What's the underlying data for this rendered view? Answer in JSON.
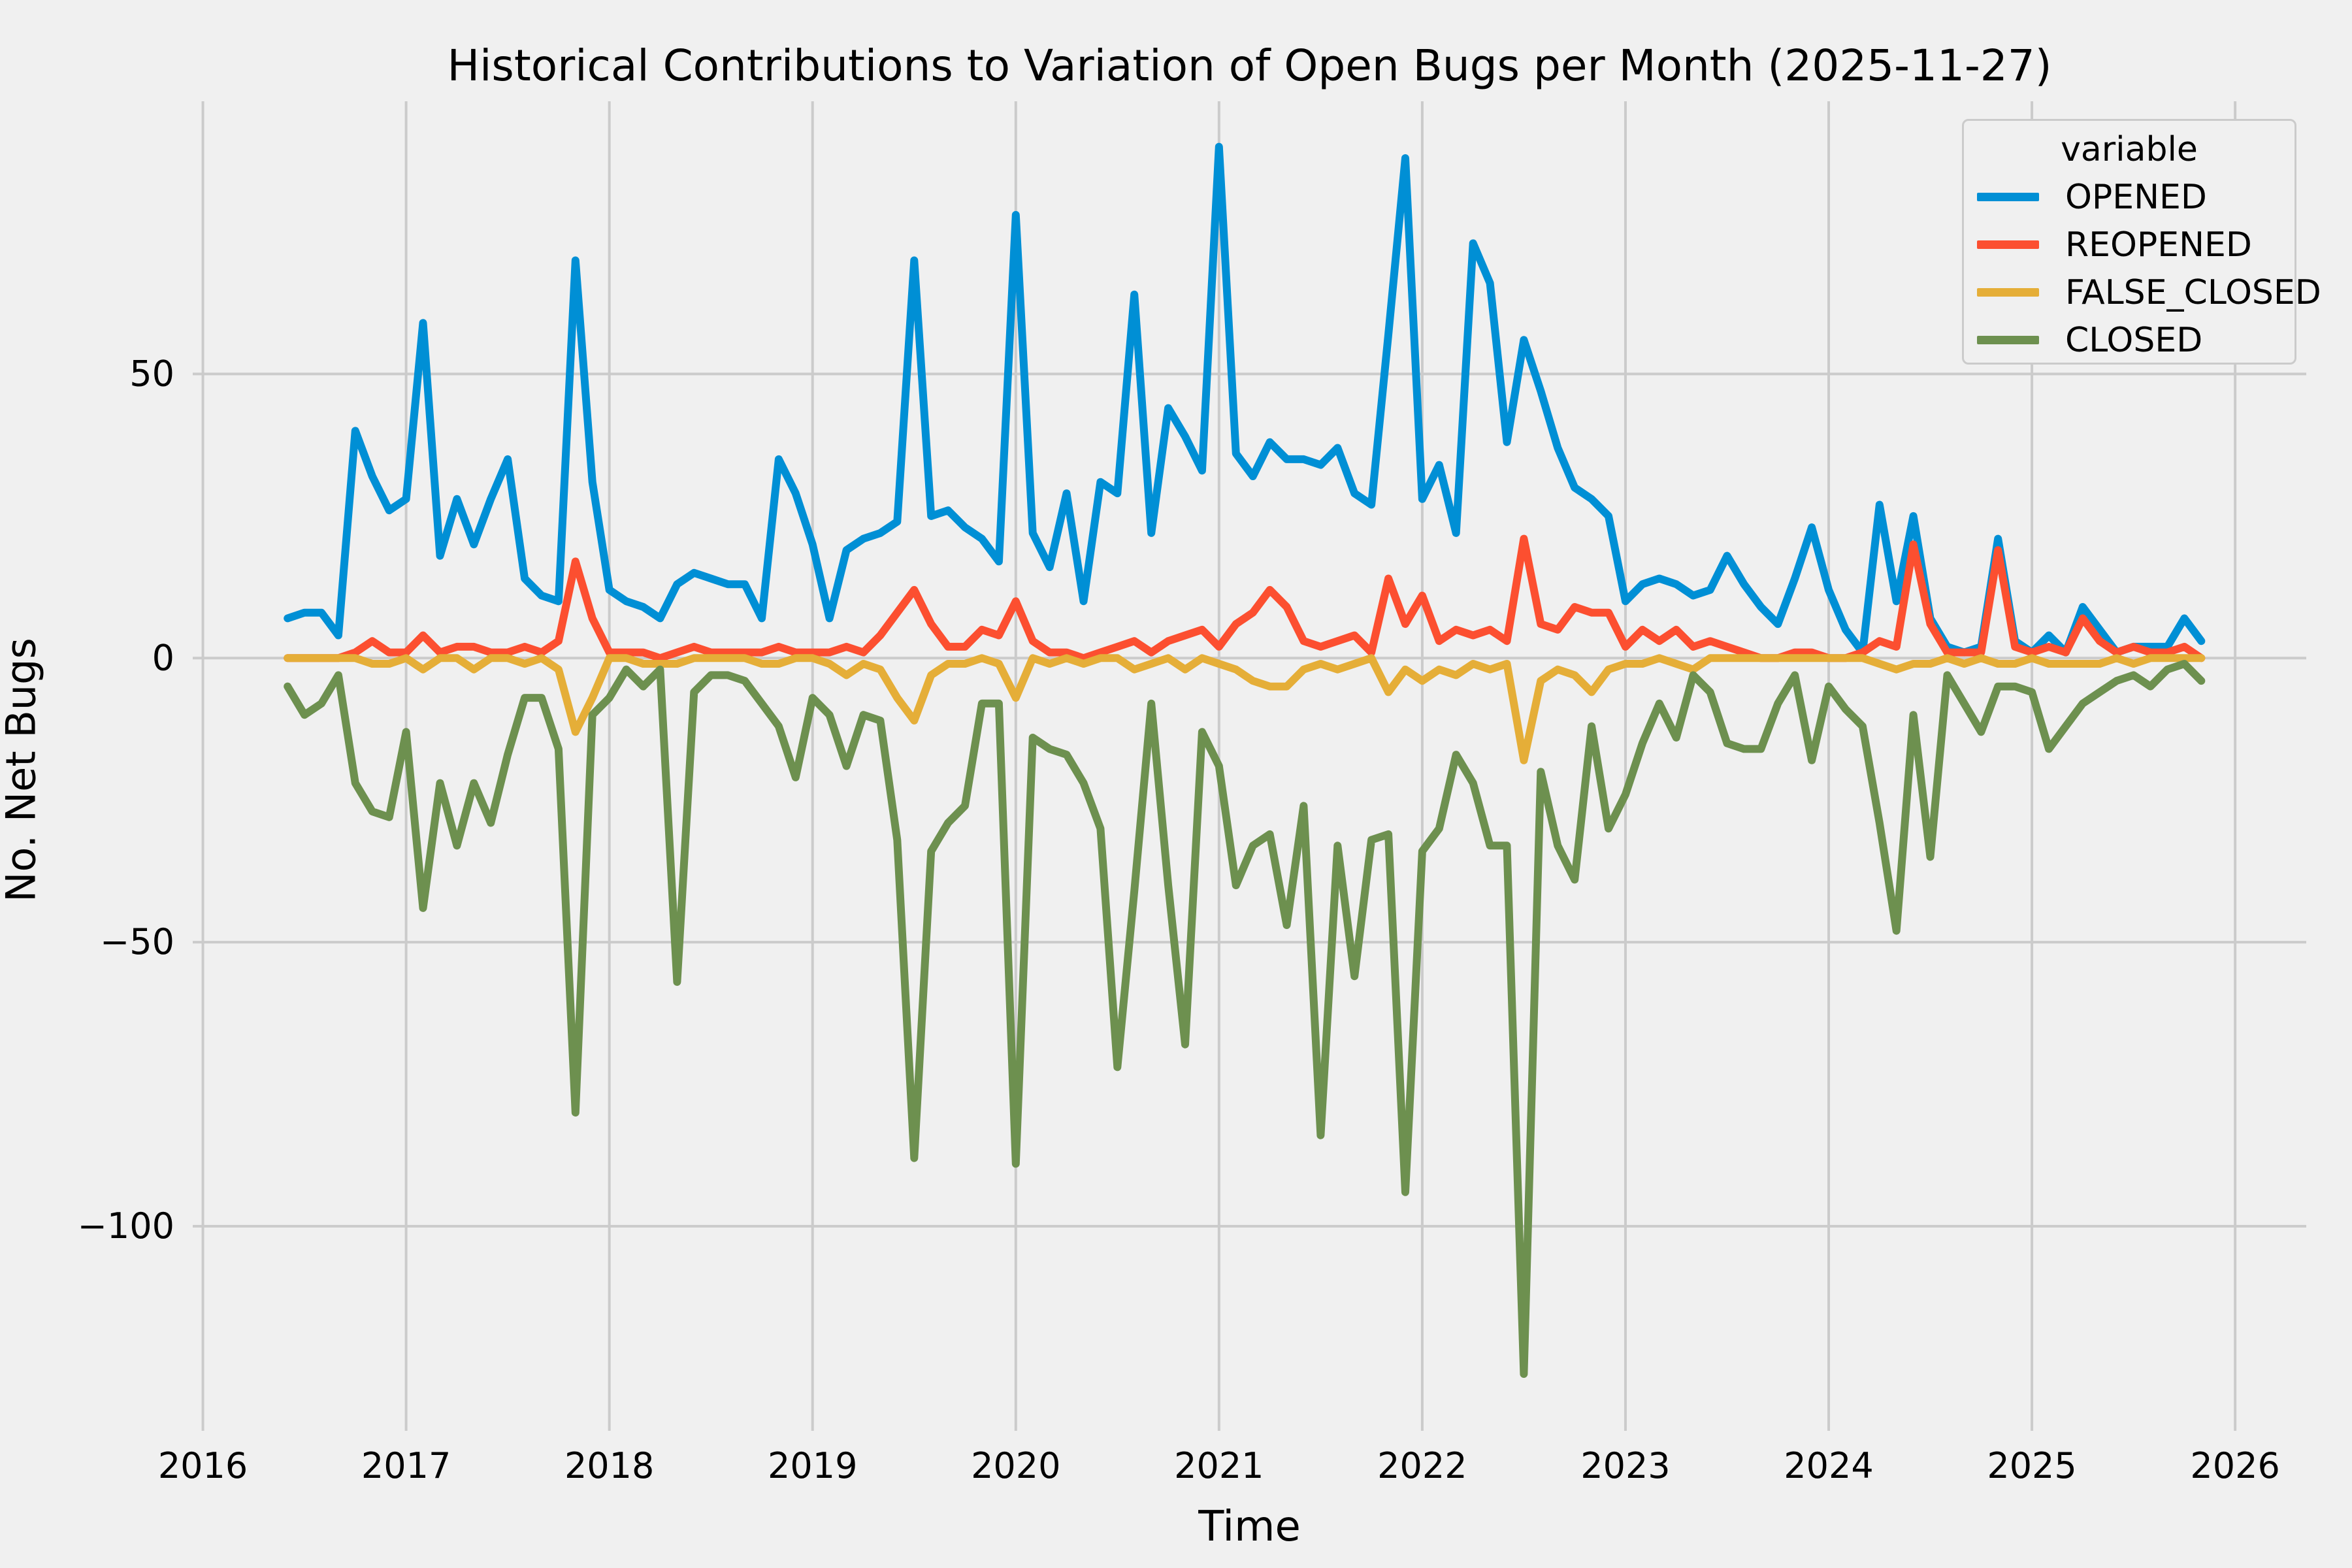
{
  "figure": {
    "title": "Historical Contributions to Variation of Open Bugs per Month (2025-11-27)",
    "background_color": "#f0f0f0",
    "gridline_color": "#cbcbcb",
    "text_color": "#000000"
  },
  "legend": {
    "title": "variable",
    "entries": [
      "OPENED",
      "REOPENED",
      "FALSE_CLOSED",
      "CLOSED"
    ]
  },
  "chart_data": {
    "type": "line",
    "title": "Historical Contributions to Variation of Open Bugs per Month (2025-11-27)",
    "xlabel": "Time",
    "ylabel": "No. Net Bugs",
    "grid": true,
    "legend_position": "upper right",
    "legend_title": "variable",
    "xlim": [
      2015.95,
      2026.35
    ],
    "ylim": [
      -136,
      98
    ],
    "xticks": [
      "2016",
      "2017",
      "2018",
      "2019",
      "2020",
      "2021",
      "2022",
      "2023",
      "2024",
      "2025",
      "2026"
    ],
    "yticks": [
      {
        "value": 50,
        "label": "50"
      },
      {
        "value": 0,
        "label": "0"
      },
      {
        "value": -50,
        "label": "−50"
      },
      {
        "value": -100,
        "label": "−100"
      }
    ],
    "months": [
      "2016-06",
      "2016-07",
      "2016-08",
      "2016-09",
      "2016-10",
      "2016-11",
      "2016-12",
      "2017-01",
      "2017-02",
      "2017-03",
      "2017-04",
      "2017-05",
      "2017-06",
      "2017-07",
      "2017-08",
      "2017-09",
      "2017-10",
      "2017-11",
      "2017-12",
      "2018-01",
      "2018-02",
      "2018-03",
      "2018-04",
      "2018-05",
      "2018-06",
      "2018-07",
      "2018-08",
      "2018-09",
      "2018-10",
      "2018-11",
      "2018-12",
      "2019-01",
      "2019-02",
      "2019-03",
      "2019-04",
      "2019-05",
      "2019-06",
      "2019-07",
      "2019-08",
      "2019-09",
      "2019-10",
      "2019-11",
      "2019-12",
      "2020-01",
      "2020-02",
      "2020-03",
      "2020-04",
      "2020-05",
      "2020-06",
      "2020-07",
      "2020-08",
      "2020-09",
      "2020-10",
      "2020-11",
      "2020-12",
      "2021-01",
      "2021-02",
      "2021-03",
      "2021-04",
      "2021-05",
      "2021-06",
      "2021-07",
      "2021-08",
      "2021-09",
      "2021-10",
      "2021-11",
      "2021-12",
      "2022-01",
      "2022-02",
      "2022-03",
      "2022-04",
      "2022-05",
      "2022-06",
      "2022-07",
      "2022-08",
      "2022-09",
      "2022-10",
      "2022-11",
      "2022-12",
      "2023-01",
      "2023-02",
      "2023-03",
      "2023-04",
      "2023-05",
      "2023-06",
      "2023-07",
      "2023-08",
      "2023-09",
      "2023-10",
      "2023-11",
      "2023-12",
      "2024-01",
      "2024-02",
      "2024-03",
      "2024-04",
      "2024-05",
      "2024-06",
      "2024-07",
      "2024-08",
      "2024-09",
      "2024-10",
      "2024-11",
      "2024-12",
      "2025-01",
      "2025-02",
      "2025-03",
      "2025-04",
      "2025-05",
      "2025-06",
      "2025-07",
      "2025-08",
      "2025-09",
      "2025-10",
      "2025-11"
    ],
    "series": [
      {
        "name": "OPENED",
        "color": "#008fd5",
        "values": [
          7,
          8,
          8,
          4,
          40,
          32,
          26,
          28,
          59,
          18,
          28,
          20,
          28,
          35,
          14,
          11,
          10,
          70,
          31,
          12,
          10,
          9,
          7,
          13,
          15,
          14,
          13,
          13,
          7,
          35,
          29,
          20,
          7,
          19,
          21,
          22,
          24,
          70,
          25,
          26,
          23,
          21,
          17,
          78,
          22,
          16,
          29,
          10,
          31,
          29,
          64,
          22,
          44,
          39,
          33,
          90,
          36,
          32,
          38,
          35,
          35,
          34,
          37,
          29,
          27,
          57,
          88,
          28,
          34,
          22,
          73,
          66,
          38,
          56,
          47,
          37,
          30,
          28,
          25,
          10,
          13,
          14,
          13,
          11,
          12,
          18,
          13,
          9,
          6,
          14,
          23,
          12,
          5,
          1,
          27,
          10,
          25,
          7,
          2,
          1,
          2,
          21,
          3,
          1,
          4,
          1,
          9,
          5,
          1,
          2,
          2,
          2,
          7,
          3
        ]
      },
      {
        "name": "REOPENED",
        "color": "#fc4f30",
        "values": [
          0,
          0,
          0,
          0,
          1,
          3,
          1,
          1,
          4,
          1,
          2,
          2,
          1,
          1,
          2,
          1,
          3,
          17,
          7,
          1,
          1,
          1,
          0,
          1,
          2,
          1,
          1,
          1,
          1,
          2,
          1,
          1,
          1,
          2,
          1,
          4,
          8,
          12,
          6,
          2,
          2,
          5,
          4,
          10,
          3,
          1,
          1,
          0,
          1,
          2,
          3,
          1,
          3,
          4,
          5,
          2,
          6,
          8,
          12,
          9,
          3,
          2,
          3,
          4,
          1,
          14,
          6,
          11,
          3,
          5,
          4,
          5,
          3,
          21,
          6,
          5,
          9,
          8,
          8,
          2,
          5,
          3,
          5,
          2,
          3,
          2,
          1,
          0,
          0,
          1,
          1,
          0,
          0,
          1,
          3,
          2,
          20,
          6,
          1,
          1,
          1,
          19,
          2,
          1,
          2,
          1,
          7,
          3,
          1,
          2,
          1,
          1,
          2,
          0
        ]
      },
      {
        "name": "FALSE_CLOSED",
        "color": "#e5ae38",
        "values": [
          0,
          0,
          0,
          0,
          0,
          -1,
          -1,
          0,
          -2,
          0,
          0,
          -2,
          0,
          0,
          -1,
          0,
          -2,
          -13,
          -7,
          0,
          0,
          -1,
          -1,
          -1,
          0,
          0,
          0,
          0,
          -1,
          -1,
          0,
          0,
          -1,
          -3,
          -1,
          -2,
          -7,
          -11,
          -3,
          -1,
          -1,
          0,
          -1,
          -7,
          0,
          -1,
          0,
          -1,
          0,
          0,
          -2,
          -1,
          0,
          -2,
          0,
          -1,
          -2,
          -4,
          -5,
          -5,
          -2,
          -1,
          -2,
          -1,
          0,
          -6,
          -2,
          -4,
          -2,
          -3,
          -1,
          -2,
          -1,
          -18,
          -4,
          -2,
          -3,
          -6,
          -2,
          -1,
          -1,
          0,
          -1,
          -2,
          0,
          0,
          0,
          0,
          0,
          0,
          0,
          0,
          0,
          0,
          -1,
          -2,
          -1,
          -1,
          0,
          -1,
          0,
          -1,
          -1,
          0,
          -1,
          -1,
          -1,
          -1,
          0,
          -1,
          0,
          0,
          0,
          0
        ]
      },
      {
        "name": "CLOSED",
        "color": "#6d904f",
        "values": [
          -5,
          -10,
          -8,
          -3,
          -22,
          -27,
          -28,
          -13,
          -44,
          -22,
          -33,
          -22,
          -29,
          -17,
          -7,
          -7,
          -16,
          -80,
          -10,
          -7,
          -2,
          -5,
          -2,
          -57,
          -6,
          -3,
          -3,
          -4,
          -8,
          -12,
          -21,
          -7,
          -10,
          -19,
          -10,
          -11,
          -32,
          -88,
          -34,
          -29,
          -26,
          -8,
          -8,
          -89,
          -14,
          -16,
          -17,
          -22,
          -30,
          -72,
          -41,
          -8,
          -40,
          -68,
          -13,
          -19,
          -40,
          -33,
          -31,
          -47,
          -26,
          -84,
          -33,
          -56,
          -32,
          -31,
          -94,
          -34,
          -30,
          -17,
          -22,
          -33,
          -33,
          -126,
          -20,
          -33,
          -39,
          -12,
          -30,
          -24,
          -15,
          -8,
          -14,
          -3,
          -6,
          -15,
          -16,
          -16,
          -8,
          -3,
          -18,
          -5,
          -9,
          -12,
          -29,
          -48,
          -10,
          -35,
          -3,
          -8,
          -13,
          -5,
          -5,
          -6,
          -16,
          -12,
          -8,
          -6,
          -4,
          -3,
          -5,
          -2,
          -1,
          -4
        ]
      }
    ]
  }
}
